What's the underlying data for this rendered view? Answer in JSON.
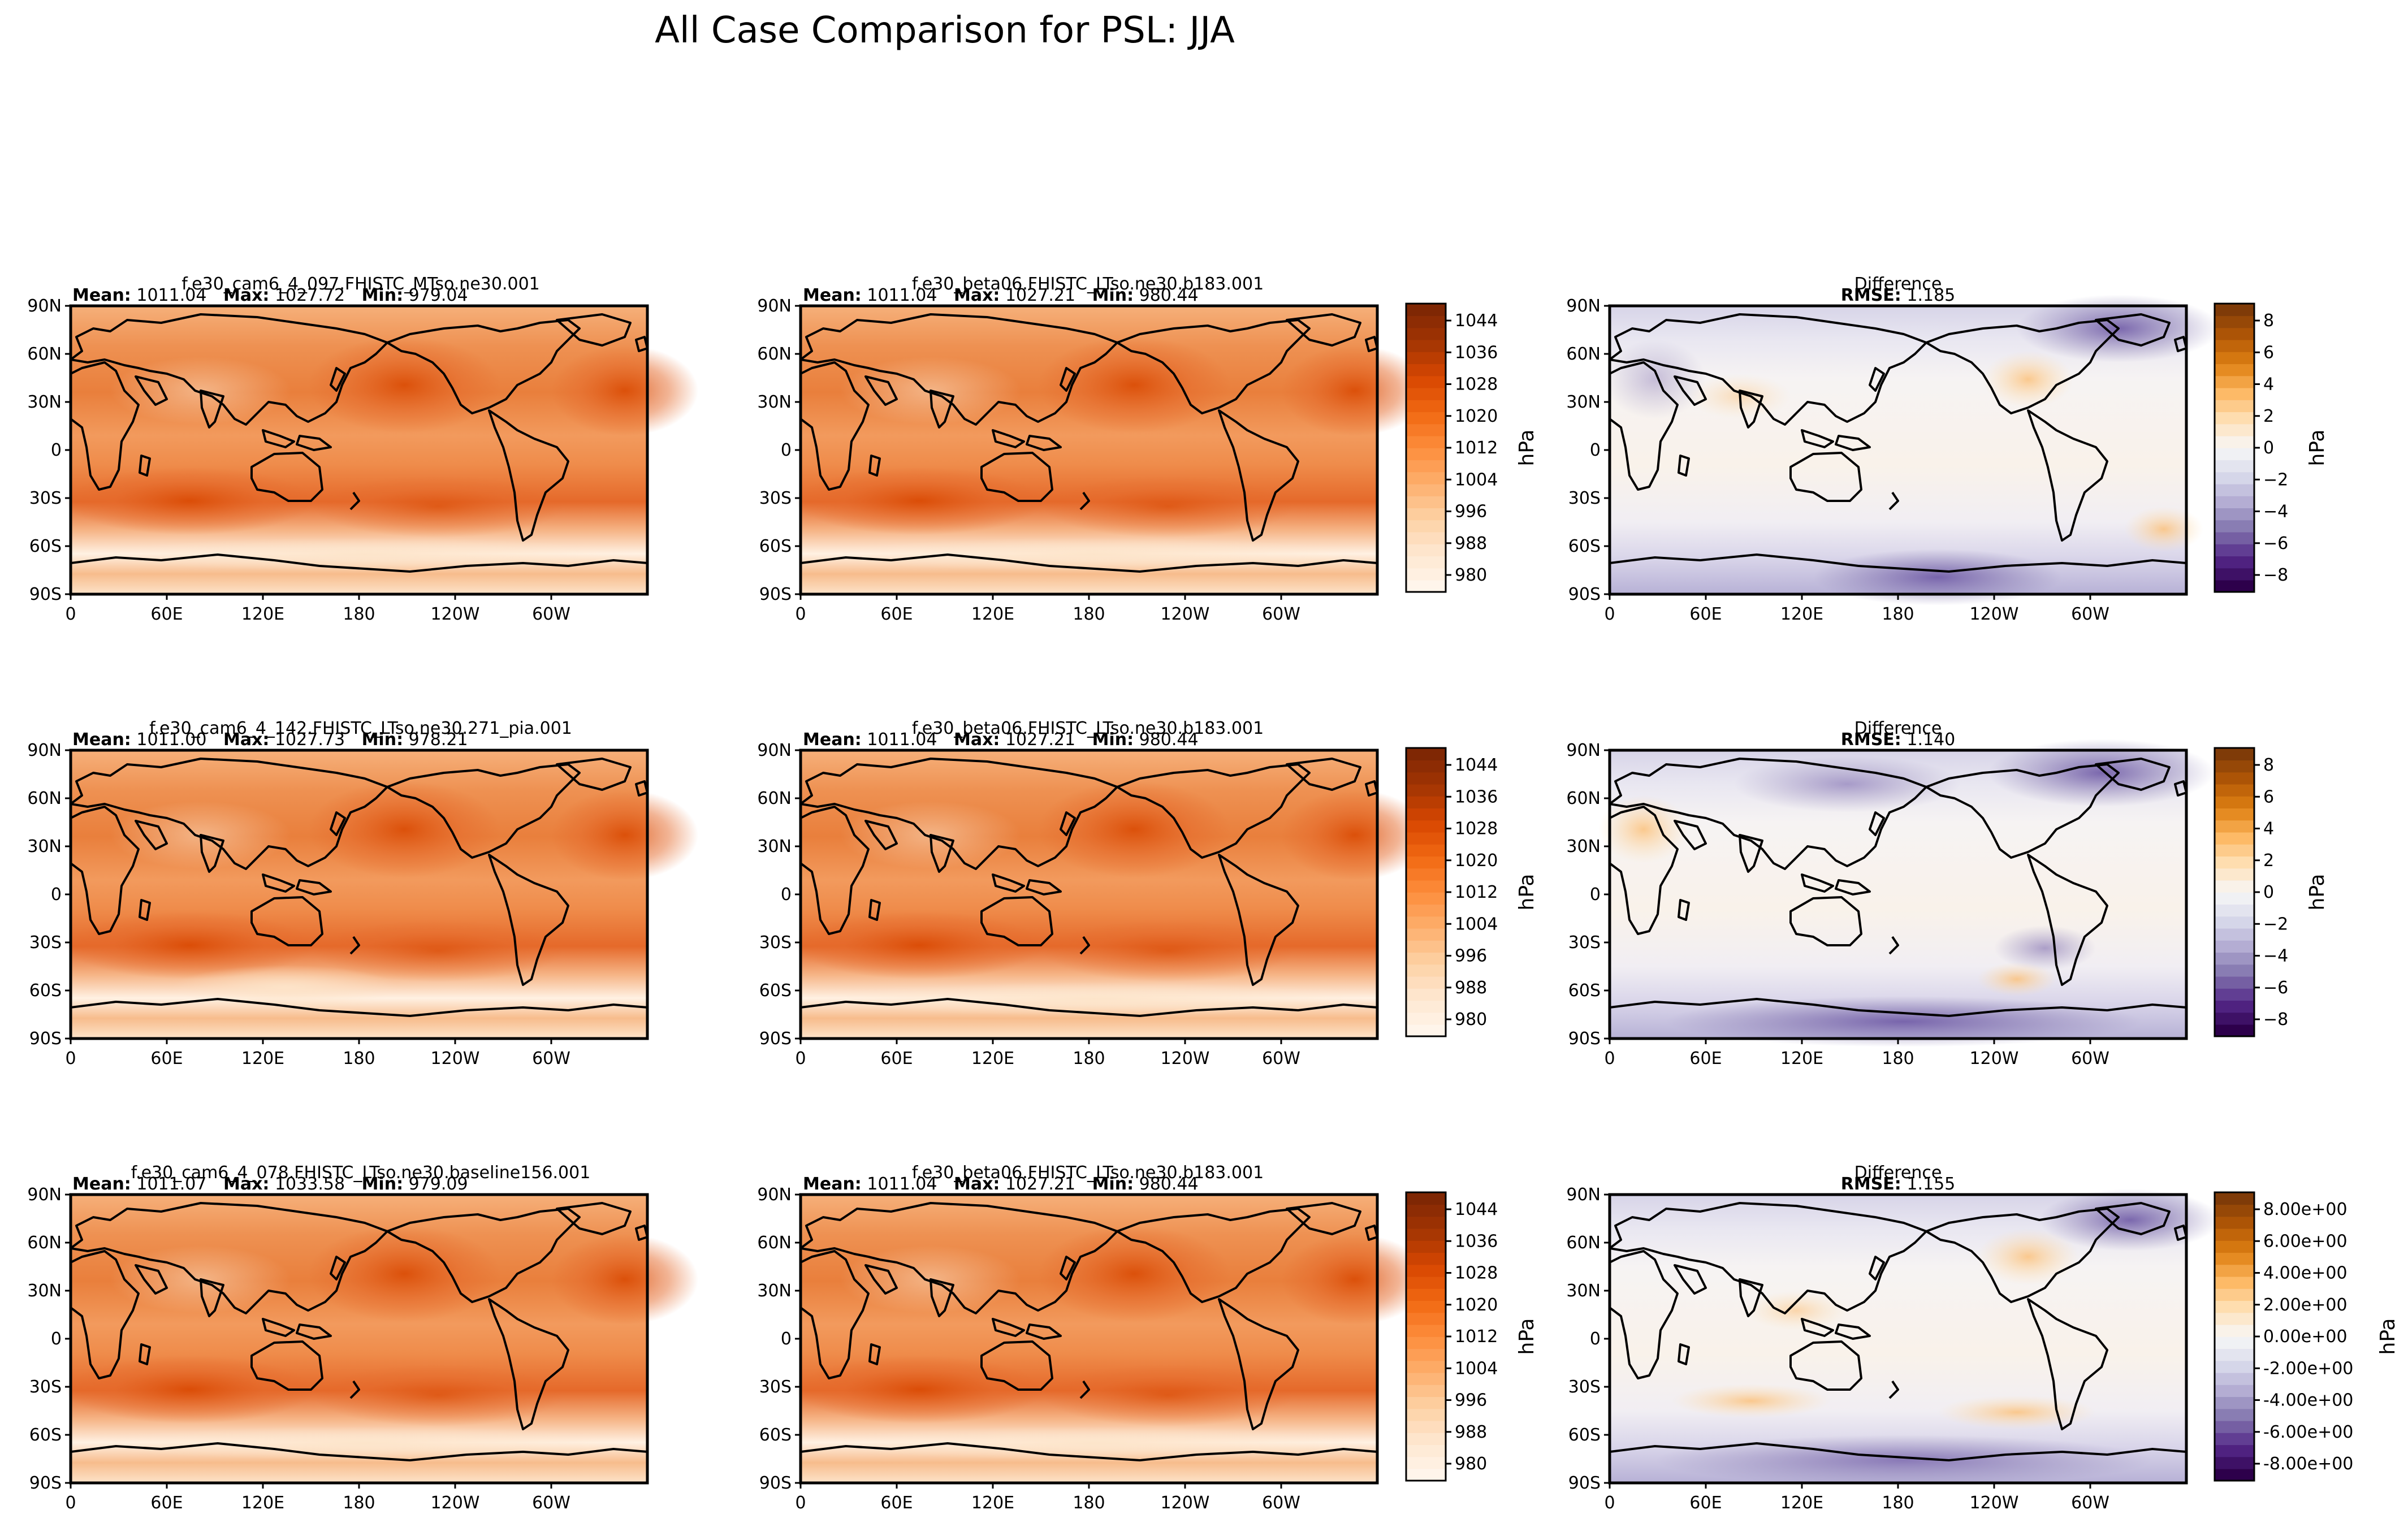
{
  "figure_title": "All Case Comparison for PSL: JJA",
  "colors": {
    "abs_cmap": [
      "#fff5eb",
      "#fee6ce",
      "#fdd0a2",
      "#fdae6b",
      "#fd8d3c",
      "#f16913",
      "#d94801",
      "#a63603",
      "#7f2704"
    ],
    "diff_cmap": [
      "#2d004b",
      "#542788",
      "#8073ac",
      "#b2abd2",
      "#d8daeb",
      "#f7f7f7",
      "#fee0b6",
      "#fdb863",
      "#e08214",
      "#b35806",
      "#7f3b08"
    ],
    "ocean_abs": "#ee9a57",
    "land_abs": "#f6b886",
    "ocean_diff": "#f5f3f0",
    "land_diff": "#f4ede4"
  },
  "map_axes": {
    "xticks": [
      "0",
      "60E",
      "120E",
      "180",
      "120W",
      "60W"
    ],
    "yticks": [
      "90N",
      "60N",
      "30N",
      "0",
      "30S",
      "60S",
      "90S"
    ]
  },
  "stat_labels": {
    "mean": "Mean:",
    "max": "Max:",
    "min": "Min:",
    "rmse": "RMSE:"
  },
  "rows": [
    {
      "test": {
        "title": "f.e30_cam6_4_097.FHISTC_MTso.ne30.001",
        "mean": "1011.04",
        "max": "1027.72",
        "min": "979.04"
      },
      "ref": {
        "title": "f.e30_beta06.FHISTC_LTso.ne30.b183.001",
        "mean": "1011.04",
        "max": "1027.21",
        "min": "980.44"
      },
      "diff": {
        "title": "Difference",
        "rmse": "1.185"
      }
    },
    {
      "test": {
        "title": "f.e30_cam6_4_142.FHISTC_LTso.ne30.271_pia.001",
        "mean": "1011.00",
        "max": "1027.73",
        "min": "978.21"
      },
      "ref": {
        "title": "f.e30_beta06.FHISTC_LTso.ne30.b183.001",
        "mean": "1011.04",
        "max": "1027.21",
        "min": "980.44"
      },
      "diff": {
        "title": "Difference",
        "rmse": "1.140"
      }
    },
    {
      "test": {
        "title": "f.e30_cam6_4_078.FHISTC_LTso.ne30.baseline156.001",
        "mean": "1011.07",
        "max": "1033.58",
        "min": "979.09"
      },
      "ref": {
        "title": "f.e30_beta06.FHISTC_LTso.ne30.b183.001",
        "mean": "1011.04",
        "max": "1027.21",
        "min": "980.44"
      },
      "diff": {
        "title": "Difference",
        "rmse": "1.155"
      }
    }
  ],
  "colorbars": {
    "abs_label": "hPa",
    "diff_label": "hPa",
    "abs_ticks": [
      "980",
      "988",
      "996",
      "1004",
      "1012",
      "1020",
      "1028",
      "1036",
      "1044"
    ],
    "diff_ticks": [
      "−8",
      "−6",
      "−4",
      "−2",
      "0",
      "2",
      "4",
      "6",
      "8"
    ],
    "diff_ticks_sci": [
      "-8.00e+00",
      "-6.00e+00",
      "-4.00e+00",
      "-2.00e+00",
      "0.00e+00",
      "2.00e+00",
      "4.00e+00",
      "6.00e+00",
      "8.00e+00"
    ]
  },
  "chart_data": {
    "type": "heatmap",
    "title": "All Case Comparison for PSL: JJA",
    "variable": "PSL",
    "season": "JJA",
    "units": "hPa",
    "xticks": [
      "0",
      "60E",
      "120E",
      "180",
      "120W",
      "60W"
    ],
    "yticks": [
      "90N",
      "60N",
      "30N",
      "0",
      "30S",
      "60S",
      "90S"
    ],
    "abs_colorbar_range": [
      980,
      1044
    ],
    "diff_colorbar_range": [
      -8,
      8
    ],
    "panels": [
      {
        "row": 1,
        "kind": "test",
        "case": "f.e30_cam6_4_097.FHISTC_MTso.ne30.001",
        "mean": 1011.04,
        "max": 1027.72,
        "min": 979.04
      },
      {
        "row": 1,
        "kind": "reference",
        "case": "f.e30_beta06.FHISTC_LTso.ne30.b183.001",
        "mean": 1011.04,
        "max": 1027.21,
        "min": 980.44
      },
      {
        "row": 1,
        "kind": "difference",
        "rmse": 1.185
      },
      {
        "row": 2,
        "kind": "test",
        "case": "f.e30_cam6_4_142.FHISTC_LTso.ne30.271_pia.001",
        "mean": 1011.0,
        "max": 1027.73,
        "min": 978.21
      },
      {
        "row": 2,
        "kind": "reference",
        "case": "f.e30_beta06.FHISTC_LTso.ne30.b183.001",
        "mean": 1011.04,
        "max": 1027.21,
        "min": 980.44
      },
      {
        "row": 2,
        "kind": "difference",
        "rmse": 1.14
      },
      {
        "row": 3,
        "kind": "test",
        "case": "f.e30_cam6_4_078.FHISTC_LTso.ne30.baseline156.001",
        "mean": 1011.07,
        "max": 1033.58,
        "min": 979.09
      },
      {
        "row": 3,
        "kind": "reference",
        "case": "f.e30_beta06.FHISTC_LTso.ne30.b183.001",
        "mean": 1011.04,
        "max": 1027.21,
        "min": 980.44
      },
      {
        "row": 3,
        "kind": "difference",
        "rmse": 1.155
      }
    ]
  }
}
